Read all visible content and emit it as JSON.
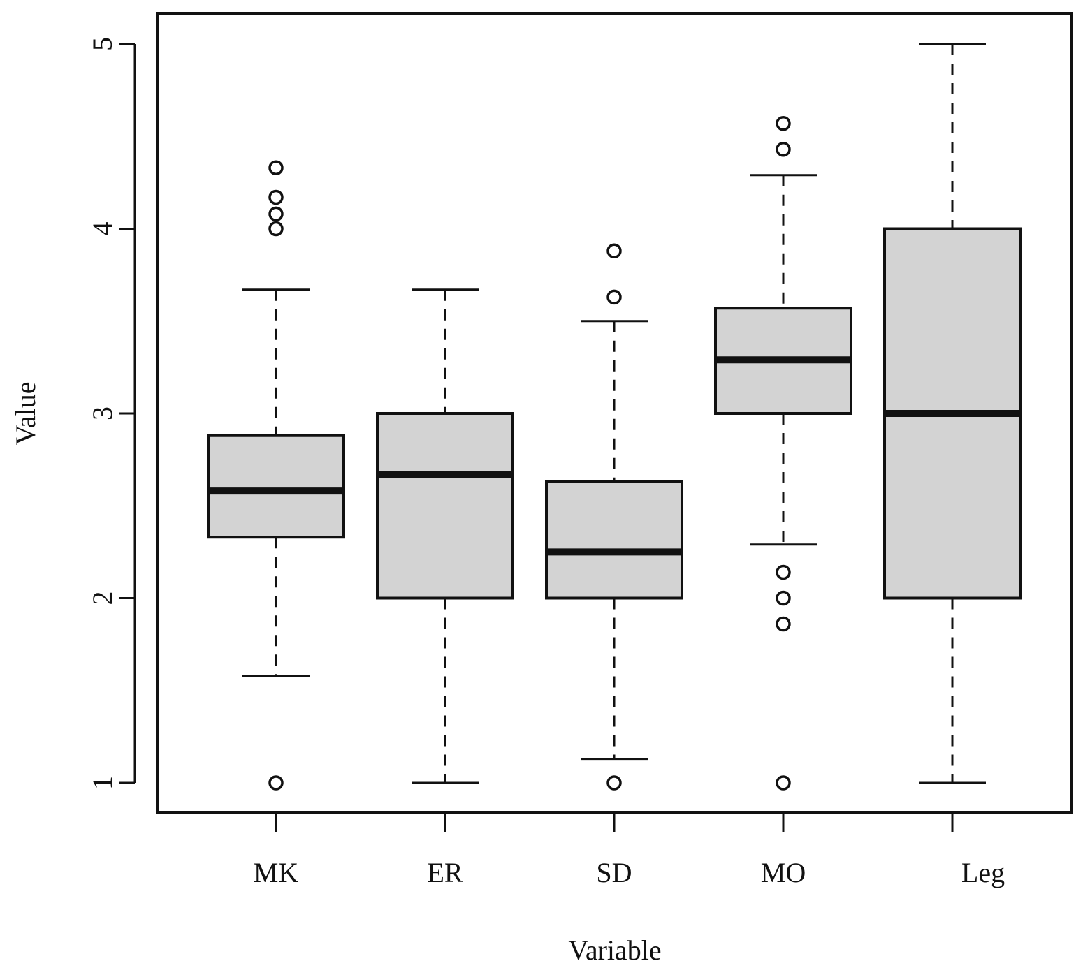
{
  "chart_data": {
    "type": "boxplot",
    "xlabel": "Variable",
    "ylabel": "Value",
    "ylim": [
      1,
      5
    ],
    "yticks": [
      "1",
      "2",
      "3",
      "4",
      "5"
    ],
    "grid": false,
    "box_fill": "#d3d3d3",
    "line_color": "#111111",
    "categories": [
      "MK",
      "ER",
      "SD",
      "MO",
      "Leg"
    ],
    "boxes": [
      {
        "name": "MK",
        "whisker_low": 1.58,
        "q1": 2.33,
        "median": 2.58,
        "q3": 2.88,
        "whisker_high": 3.67,
        "outliers": [
          1.0,
          4.0,
          4.08,
          4.17,
          4.33
        ]
      },
      {
        "name": "ER",
        "whisker_low": 1.0,
        "q1": 2.0,
        "median": 2.67,
        "q3": 3.0,
        "whisker_high": 3.67,
        "outliers": []
      },
      {
        "name": "SD",
        "whisker_low": 1.13,
        "q1": 2.0,
        "median": 2.25,
        "q3": 2.63,
        "whisker_high": 3.5,
        "outliers": [
          1.0,
          3.63,
          3.88
        ]
      },
      {
        "name": "MO",
        "whisker_low": 2.29,
        "q1": 3.0,
        "median": 3.29,
        "q3": 3.57,
        "whisker_high": 4.29,
        "outliers": [
          1.0,
          1.86,
          2.0,
          2.14,
          4.43,
          4.57
        ]
      },
      {
        "name": "Leg",
        "whisker_low": 1.0,
        "q1": 2.0,
        "median": 3.0,
        "q3": 4.0,
        "whisker_high": 5.0,
        "outliers": []
      }
    ]
  }
}
